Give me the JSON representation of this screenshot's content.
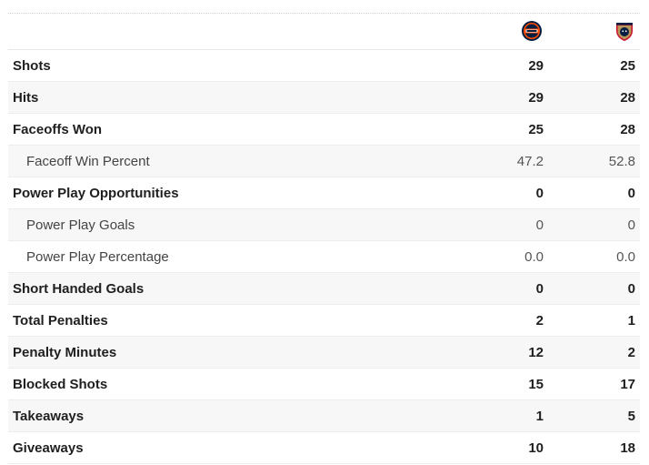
{
  "teams": {
    "home": {
      "icon": "oilers-logo-icon",
      "colors": {
        "primary": "#041e42",
        "secondary": "#ff4c00"
      }
    },
    "away": {
      "icon": "panthers-logo-icon",
      "colors": {
        "primary": "#c8102e",
        "secondary": "#b9975b",
        "tertiary": "#041e42"
      }
    }
  },
  "stats": [
    {
      "label": "Shots",
      "home": "29",
      "away": "25"
    },
    {
      "label": "Hits",
      "home": "29",
      "away": "28"
    },
    {
      "label": "Faceoffs Won",
      "home": "25",
      "away": "28"
    },
    {
      "label": "Faceoff Win Percent",
      "home": "47.2",
      "away": "52.8"
    },
    {
      "label": "Power Play Opportunities",
      "home": "0",
      "away": "0"
    },
    {
      "label": "Power Play Goals",
      "home": "0",
      "away": "0"
    },
    {
      "label": "Power Play Percentage",
      "home": "0.0",
      "away": "0.0"
    },
    {
      "label": "Short Handed Goals",
      "home": "0",
      "away": "0"
    },
    {
      "label": "Total Penalties",
      "home": "2",
      "away": "1"
    },
    {
      "label": "Penalty Minutes",
      "home": "12",
      "away": "2"
    },
    {
      "label": "Blocked Shots",
      "home": "15",
      "away": "17"
    },
    {
      "label": "Takeaways",
      "home": "1",
      "away": "5"
    },
    {
      "label": "Giveaways",
      "home": "10",
      "away": "18"
    }
  ]
}
